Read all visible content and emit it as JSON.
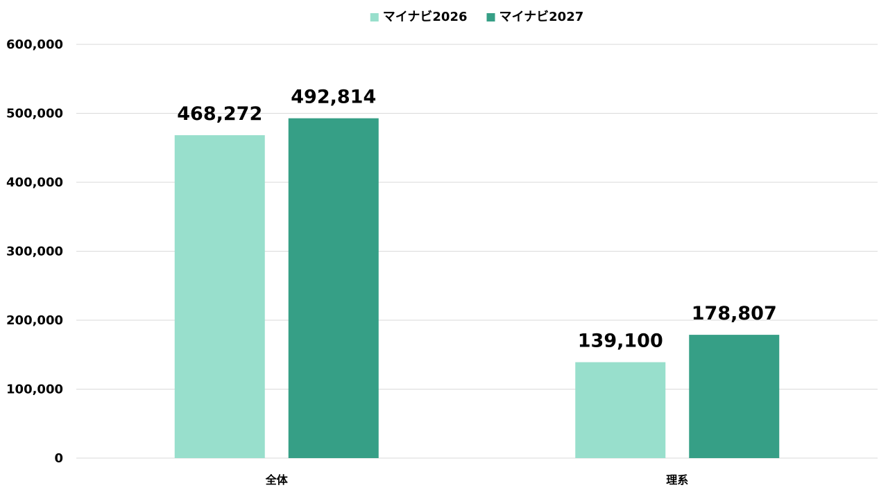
{
  "chart_data": {
    "type": "bar",
    "categories": [
      "全体",
      "理系"
    ],
    "series": [
      {
        "name": "マイナビ2026",
        "values": [
          468272,
          139100
        ],
        "labels": [
          "468,272",
          "139,100"
        ],
        "color": "#98dfcc"
      },
      {
        "name": "マイナビ2027",
        "values": [
          492814,
          178807
        ],
        "labels": [
          "492,814",
          "178,807"
        ],
        "color": "#369f86"
      }
    ],
    "yticks": [
      "0",
      "100,000",
      "200,000",
      "300,000",
      "400,000",
      "500,000",
      "600,000"
    ],
    "ylim": [
      0,
      600000
    ],
    "grid": true,
    "legend_position": "top-center"
  }
}
